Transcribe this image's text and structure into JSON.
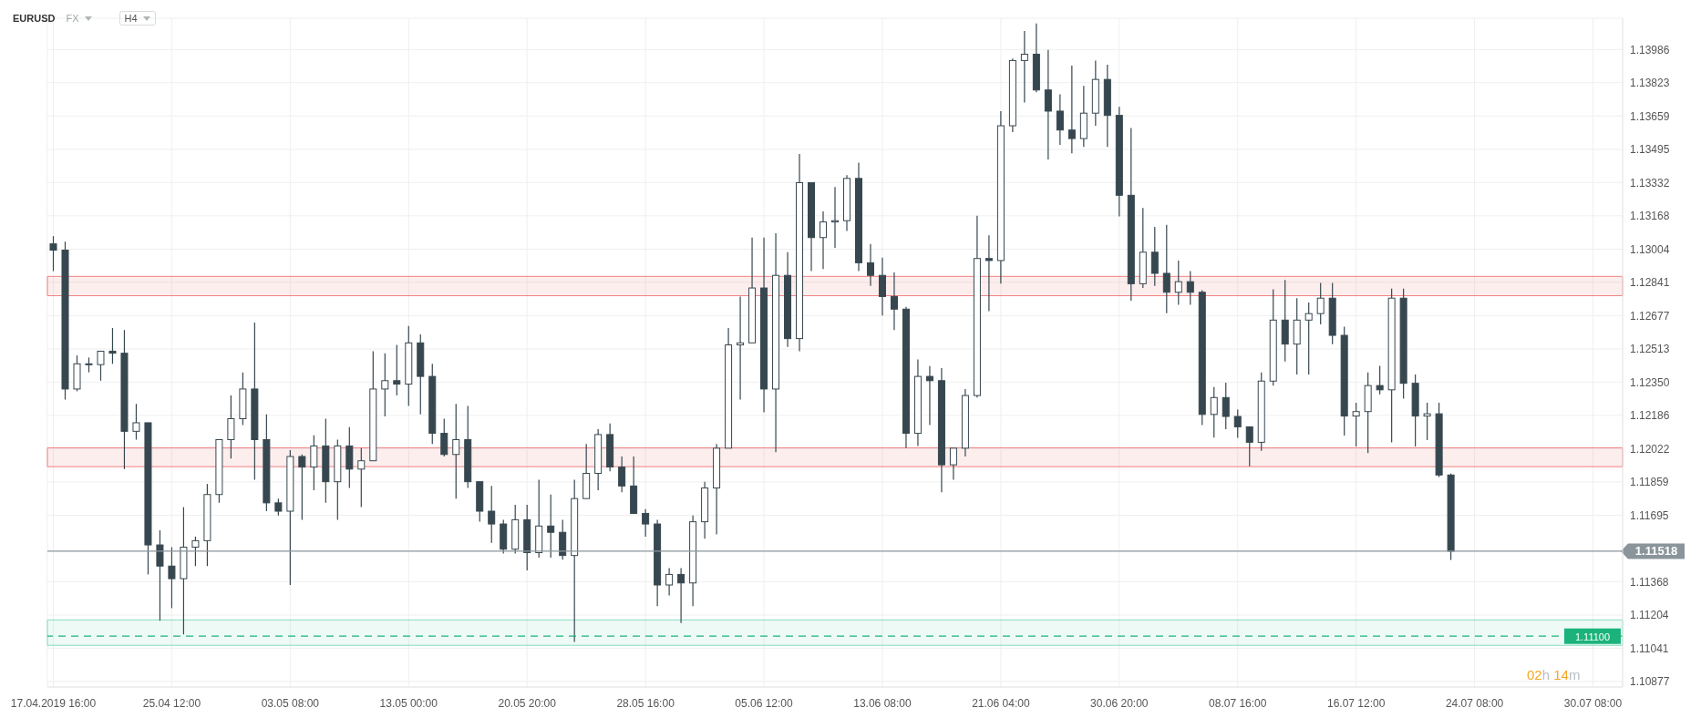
{
  "chart_data": {
    "type": "candlestick",
    "title": "EURUSD",
    "annotations": [
      "FX",
      "H4",
      "02h 14m"
    ],
    "categories": [
      "17.04.2019 16:00",
      null,
      null,
      null,
      null,
      null,
      null,
      null,
      null,
      null,
      "25.04 12:00",
      null,
      null,
      null,
      null,
      null,
      null,
      null,
      null,
      null,
      "03.05 08:00",
      null,
      null,
      null,
      null,
      null,
      null,
      null,
      null,
      null,
      "13.05 00:00",
      null,
      null,
      null,
      null,
      null,
      null,
      null,
      null,
      null,
      "20.05 20:00",
      null,
      null,
      null,
      null,
      null,
      null,
      null,
      null,
      null,
      "28.05 16:00",
      null,
      null,
      null,
      null,
      null,
      null,
      null,
      null,
      null,
      "05.06 12:00",
      null,
      null,
      null,
      null,
      null,
      null,
      null,
      null,
      null,
      "13.06 08:00",
      null,
      null,
      null,
      null,
      null,
      null,
      null,
      null,
      null,
      "21.06 04:00",
      null,
      null,
      null,
      null,
      null,
      null,
      null,
      null,
      null,
      "30.06 20:00",
      null,
      null,
      null,
      null,
      null,
      null,
      null,
      null,
      null,
      "08.07 16:00",
      null,
      null,
      null,
      null,
      null,
      null,
      null,
      null,
      null,
      "16.07 12:00",
      null,
      null,
      null,
      null,
      null,
      null,
      null,
      null,
      null,
      "24.07 08:00",
      null,
      null,
      null,
      null,
      null,
      null,
      null,
      null,
      null,
      "30.07 08:00",
      null,
      null
    ],
    "color": "#37474f",
    "ohlc": [
      [
        1.1303,
        1.13068,
        1.12896,
        1.12999
      ],
      [
        1.12999,
        1.13041,
        1.12264,
        1.12316
      ],
      [
        1.12316,
        1.12481,
        1.12305,
        1.1244
      ],
      [
        1.1244,
        1.12471,
        1.12398,
        1.12436
      ],
      [
        1.12436,
        1.12502,
        1.12357,
        1.12502
      ],
      [
        1.12502,
        1.12616,
        1.1244,
        1.12492
      ],
      [
        1.12492,
        1.12606,
        1.11922,
        1.12108
      ],
      [
        1.12108,
        1.12243,
        1.12067,
        1.1215
      ],
      [
        1.1215,
        1.1215,
        1.11404,
        1.11549
      ],
      [
        1.11549,
        1.11621,
        1.11176,
        1.11445
      ],
      [
        1.11445,
        1.11538,
        1.11238,
        1.11383
      ],
      [
        1.11383,
        1.11735,
        1.11109,
        1.11538
      ],
      [
        1.11538,
        1.1159,
        1.11445,
        1.1157
      ],
      [
        1.1157,
        1.11849,
        1.11445,
        1.11797
      ],
      [
        1.11797,
        1.12067,
        1.11756,
        1.12067
      ],
      [
        1.12067,
        1.12284,
        1.11974,
        1.1217
      ],
      [
        1.1217,
        1.12398,
        1.12139,
        1.12316
      ],
      [
        1.12316,
        1.12643,
        1.1187,
        1.12067
      ],
      [
        1.12067,
        1.12191,
        1.11715,
        1.11756
      ],
      [
        1.11756,
        1.11777,
        1.11694,
        1.11715
      ],
      [
        1.11715,
        1.12015,
        1.11352,
        1.11984
      ],
      [
        1.11984,
        1.11994,
        1.11673,
        1.11932
      ],
      [
        1.11932,
        1.12088,
        1.11818,
        1.12036
      ],
      [
        1.12036,
        1.1217,
        1.11756,
        1.1186
      ],
      [
        1.1186,
        1.12067,
        1.11673,
        1.12036
      ],
      [
        1.12036,
        1.12129,
        1.11829,
        1.11922
      ],
      [
        1.11922,
        1.12025,
        1.11735,
        1.11963
      ],
      [
        1.11963,
        1.12502,
        1.11963,
        1.12316
      ],
      [
        1.12316,
        1.12492,
        1.12181,
        1.12357
      ],
      [
        1.12357,
        1.12533,
        1.12284,
        1.1234
      ],
      [
        1.1234,
        1.12626,
        1.12233,
        1.12543
      ],
      [
        1.12543,
        1.12585,
        1.12191,
        1.12378
      ],
      [
        1.12378,
        1.1244,
        1.12046,
        1.12098
      ],
      [
        1.12098,
        1.1217,
        1.11984,
        1.11994
      ],
      [
        1.11994,
        1.12243,
        1.11777,
        1.12067
      ],
      [
        1.12067,
        1.12233,
        1.11829,
        1.1186
      ],
      [
        1.1186,
        1.1186,
        1.11663,
        1.11715
      ],
      [
        1.11715,
        1.11839,
        1.11559,
        1.11652
      ],
      [
        1.11652,
        1.11673,
        1.11507,
        1.11528
      ],
      [
        1.11528,
        1.11746,
        1.11507,
        1.11673
      ],
      [
        1.11673,
        1.11746,
        1.11424,
        1.11511
      ],
      [
        1.11511,
        1.1187,
        1.11487,
        1.11642
      ],
      [
        1.11642,
        1.11797,
        1.11487,
        1.11611
      ],
      [
        1.11611,
        1.11673,
        1.11476,
        1.11497
      ],
      [
        1.11497,
        1.1187,
        1.11072,
        1.11777
      ],
      [
        1.11777,
        1.12046,
        1.11777,
        1.11901
      ],
      [
        1.11901,
        1.12119,
        1.11818,
        1.12092
      ],
      [
        1.12092,
        1.12146,
        1.11911,
        1.11932
      ],
      [
        1.11932,
        1.11984,
        1.11808,
        1.11839
      ],
      [
        1.11839,
        1.11984,
        1.11704,
        1.11704
      ],
      [
        1.11704,
        1.11725,
        1.1159,
        1.11652
      ],
      [
        1.11652,
        1.11673,
        1.11248,
        1.11352
      ],
      [
        1.11352,
        1.11435,
        1.113,
        1.11404
      ],
      [
        1.11404,
        1.11435,
        1.11165,
        1.11362
      ],
      [
        1.11362,
        1.11694,
        1.11248,
        1.11663
      ],
      [
        1.11663,
        1.1186,
        1.1158,
        1.11829
      ],
      [
        1.11829,
        1.12046,
        1.11601,
        1.12025
      ],
      [
        1.12025,
        1.12616,
        1.12025,
        1.12533
      ],
      [
        1.12533,
        1.12771,
        1.12264,
        1.12543
      ],
      [
        1.12543,
        1.13061,
        1.12543,
        1.12813
      ],
      [
        1.12813,
        1.13061,
        1.12201,
        1.12316
      ],
      [
        1.12316,
        1.13082,
        1.12005,
        1.12875
      ],
      [
        1.12875,
        1.12989,
        1.12523,
        1.12564
      ],
      [
        1.12564,
        1.13472,
        1.12502,
        1.13331
      ],
      [
        1.13331,
        1.13331,
        1.12896,
        1.13061
      ],
      [
        1.13061,
        1.1319,
        1.12906,
        1.13138
      ],
      [
        1.13138,
        1.1331,
        1.1301,
        1.13144
      ],
      [
        1.13144,
        1.13368,
        1.13093,
        1.13352
      ],
      [
        1.13352,
        1.1343,
        1.12896,
        1.12937
      ],
      [
        1.12937,
        1.1303,
        1.12823,
        1.12875
      ],
      [
        1.12875,
        1.12962,
        1.12678,
        1.12771
      ],
      [
        1.12771,
        1.1289,
        1.12606,
        1.12709
      ],
      [
        1.12709,
        1.1272,
        1.12025,
        1.12098
      ],
      [
        1.12098,
        1.12461,
        1.12036,
        1.12378
      ],
      [
        1.12378,
        1.12429,
        1.12139,
        1.12357
      ],
      [
        1.12357,
        1.12419,
        1.11808,
        1.11943
      ],
      [
        1.11943,
        1.12025,
        1.1187,
        1.12025
      ],
      [
        1.12025,
        1.12316,
        1.11984,
        1.12284
      ],
      [
        1.12284,
        1.13169,
        1.12274,
        1.12958
      ],
      [
        1.12958,
        1.13072,
        1.12699,
        1.12948
      ],
      [
        1.12948,
        1.13683,
        1.12834,
        1.13611
      ],
      [
        1.13611,
        1.13942,
        1.1358,
        1.13932
      ],
      [
        1.13932,
        1.14077,
        1.13725,
        1.13963
      ],
      [
        1.13963,
        1.14114,
        1.13776,
        1.13787
      ],
      [
        1.13787,
        1.13984,
        1.13445,
        1.13683
      ],
      [
        1.13683,
        1.13766,
        1.13517,
        1.1359
      ],
      [
        1.1359,
        1.13907,
        1.13476,
        1.13548
      ],
      [
        1.13548,
        1.13807,
        1.13507,
        1.13673
      ],
      [
        1.13673,
        1.13932,
        1.13611,
        1.13839
      ],
      [
        1.13839,
        1.13911,
        1.13507,
        1.13662
      ],
      [
        1.13662,
        1.13704,
        1.13165,
        1.13269
      ],
      [
        1.13269,
        1.136,
        1.12751,
        1.12834
      ],
      [
        1.12834,
        1.13207,
        1.12813,
        1.12989
      ],
      [
        1.12989,
        1.13113,
        1.12823,
        1.12885
      ],
      [
        1.12885,
        1.13124,
        1.12689,
        1.12792
      ],
      [
        1.12792,
        1.12948,
        1.1273,
        1.12844
      ],
      [
        1.12844,
        1.12896,
        1.1273,
        1.12792
      ],
      [
        1.12792,
        1.12802,
        1.12139,
        1.12191
      ],
      [
        1.12191,
        1.12326,
        1.12077,
        1.12274
      ],
      [
        1.12274,
        1.12347,
        1.12119,
        1.12181
      ],
      [
        1.12181,
        1.12215,
        1.12076,
        1.1213
      ],
      [
        1.1213,
        1.1213,
        1.11936,
        1.12054
      ],
      [
        1.12054,
        1.12398,
        1.12012,
        1.12355
      ],
      [
        1.12355,
        1.12806,
        1.12333,
        1.12655
      ],
      [
        1.12655,
        1.12853,
        1.12451,
        1.12537
      ],
      [
        1.12537,
        1.12763,
        1.12387,
        1.12655
      ],
      [
        1.12655,
        1.12741,
        1.12387,
        1.12687
      ],
      [
        1.12687,
        1.12838,
        1.12634,
        1.12763
      ],
      [
        1.12763,
        1.12838,
        1.12537,
        1.1258
      ],
      [
        1.1258,
        1.12623,
        1.12087,
        1.12183
      ],
      [
        1.12183,
        1.12248,
        1.12033,
        1.12205
      ],
      [
        1.12205,
        1.12398,
        1.12001,
        1.12333
      ],
      [
        1.12333,
        1.1243,
        1.1229,
        1.12312
      ],
      [
        1.12312,
        1.1281,
        1.12054,
        1.12763
      ],
      [
        1.12763,
        1.1281,
        1.12269,
        1.12344
      ],
      [
        1.12344,
        1.12387,
        1.12033,
        1.12183
      ],
      [
        1.12183,
        1.12248,
        1.12065,
        1.12194
      ],
      [
        1.12194,
        1.12248,
        1.11883,
        1.11893
      ],
      [
        1.11893,
        1.119,
        1.11475,
        1.11518
      ],
      null,
      null,
      null,
      null,
      null,
      null,
      null,
      null,
      null,
      null,
      null,
      null,
      null,
      null
    ],
    "ylim": [
      1.1085,
      1.1414
    ],
    "yticks": [
      1.10877,
      1.11041,
      1.11204,
      1.11368,
      1.11695,
      1.11859,
      1.12022,
      1.12186,
      {
        "value": 1.1235,
        "label": "1.12350"
      },
      1.12513,
      1.12677,
      1.12841,
      1.13004,
      1.13168,
      1.13332,
      1.13495,
      1.13659,
      1.13823,
      1.13986
    ],
    "ref_lines": [
      {
        "axis": "y",
        "value": 1.11518,
        "label": "1.11518",
        "color": "#8a959b"
      },
      {
        "axis": "y",
        "value": 1.111,
        "label": "1.11100",
        "color": "#1bb37b",
        "line_style": "dashed"
      }
    ],
    "bands": [
      {
        "axis": "y",
        "from": 1.12775,
        "to": 1.1287,
        "color": "#f07b7b"
      },
      {
        "axis": "y",
        "from": 1.11934,
        "to": 1.12027,
        "color": "#f07b7b"
      },
      {
        "axis": "y",
        "from": 1.11055,
        "to": 1.1118,
        "color": "#7fd9bd"
      }
    ],
    "grid": true,
    "legend": false
  }
}
